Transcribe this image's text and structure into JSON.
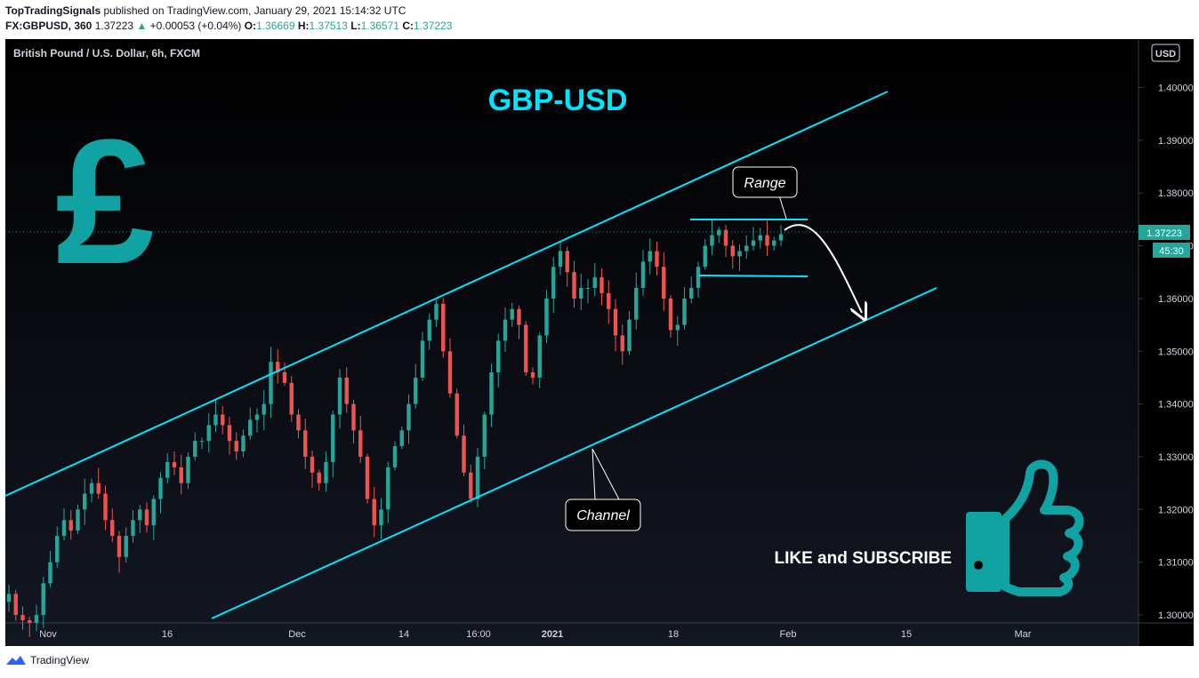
{
  "header": {
    "author": "TopTradingSignals",
    "published_text": "published on TradingView.com, January 29, 2021 15:14:32 UTC",
    "symbol": "FX:GBPUSD, 360",
    "last": "1.37223",
    "change": "+0.00053 (+0.04%)",
    "open_label": "O:",
    "open": "1.36669",
    "high_label": "H:",
    "high": "1.37513",
    "low_label": "L:",
    "low": "1.36571",
    "close_label": "C:",
    "close": "1.37223"
  },
  "chart_data": {
    "type": "candlestick",
    "title": "British Pound / U.S. Dollar, 6h, FXCM",
    "currency": "USD",
    "y_ticks": [
      "1.40000",
      "1.39000",
      "1.38000",
      "1.37000",
      "1.36000",
      "1.35000",
      "1.34000",
      "1.33000",
      "1.32000",
      "1.31000",
      "1.30000"
    ],
    "ylim": [
      1.2985,
      1.4085
    ],
    "x_ticks": [
      "Nov",
      "16",
      "Dec",
      "14",
      "16:00",
      "2021",
      "18",
      "Feb",
      "15",
      "Mar"
    ],
    "price_marker": "1.37223",
    "countdown": "45:30",
    "annotations": {
      "headline": "GBP-USD",
      "range_label": "Range",
      "channel_label": "Channel",
      "cta": "LIKE and SUBSCRIBE"
    },
    "closes": [
      1.304,
      1.3,
      1.299,
      1.2985,
      1.3,
      1.306,
      1.31,
      1.315,
      1.318,
      1.316,
      1.32,
      1.323,
      1.325,
      1.323,
      1.318,
      1.315,
      1.311,
      1.315,
      1.318,
      1.32,
      1.317,
      1.322,
      1.326,
      1.329,
      1.328,
      1.325,
      1.33,
      1.333,
      1.333,
      1.336,
      1.338,
      1.336,
      1.333,
      1.331,
      1.334,
      1.337,
      1.338,
      1.34,
      1.348,
      1.346,
      1.344,
      1.338,
      1.335,
      1.33,
      1.327,
      1.325,
      1.329,
      1.338,
      1.345,
      1.34,
      1.335,
      1.33,
      1.322,
      1.317,
      1.32,
      1.328,
      1.332,
      1.335,
      1.34,
      1.345,
      1.352,
      1.356,
      1.359,
      1.35,
      1.342,
      1.334,
      1.327,
      1.322,
      1.33,
      1.338,
      1.346,
      1.352,
      1.356,
      1.358,
      1.355,
      1.346,
      1.345,
      1.353,
      1.36,
      1.366,
      1.369,
      1.365,
      1.36,
      1.362,
      1.362,
      1.364,
      1.361,
      1.358,
      1.353,
      1.35,
      1.356,
      1.362,
      1.367,
      1.369,
      1.366,
      1.36,
      1.354,
      1.355,
      1.36,
      1.362,
      1.366,
      1.37,
      1.372,
      1.373,
      1.37,
      1.368,
      1.369,
      1.37,
      1.371,
      1.372,
      1.37,
      1.371,
      1.3722
    ]
  },
  "brand": {
    "accent": "#00e5ff",
    "up": "#26a69a",
    "down": "#ef5350",
    "logo_teal": "#11a3a3"
  },
  "footer": {
    "brand": "TradingView"
  }
}
